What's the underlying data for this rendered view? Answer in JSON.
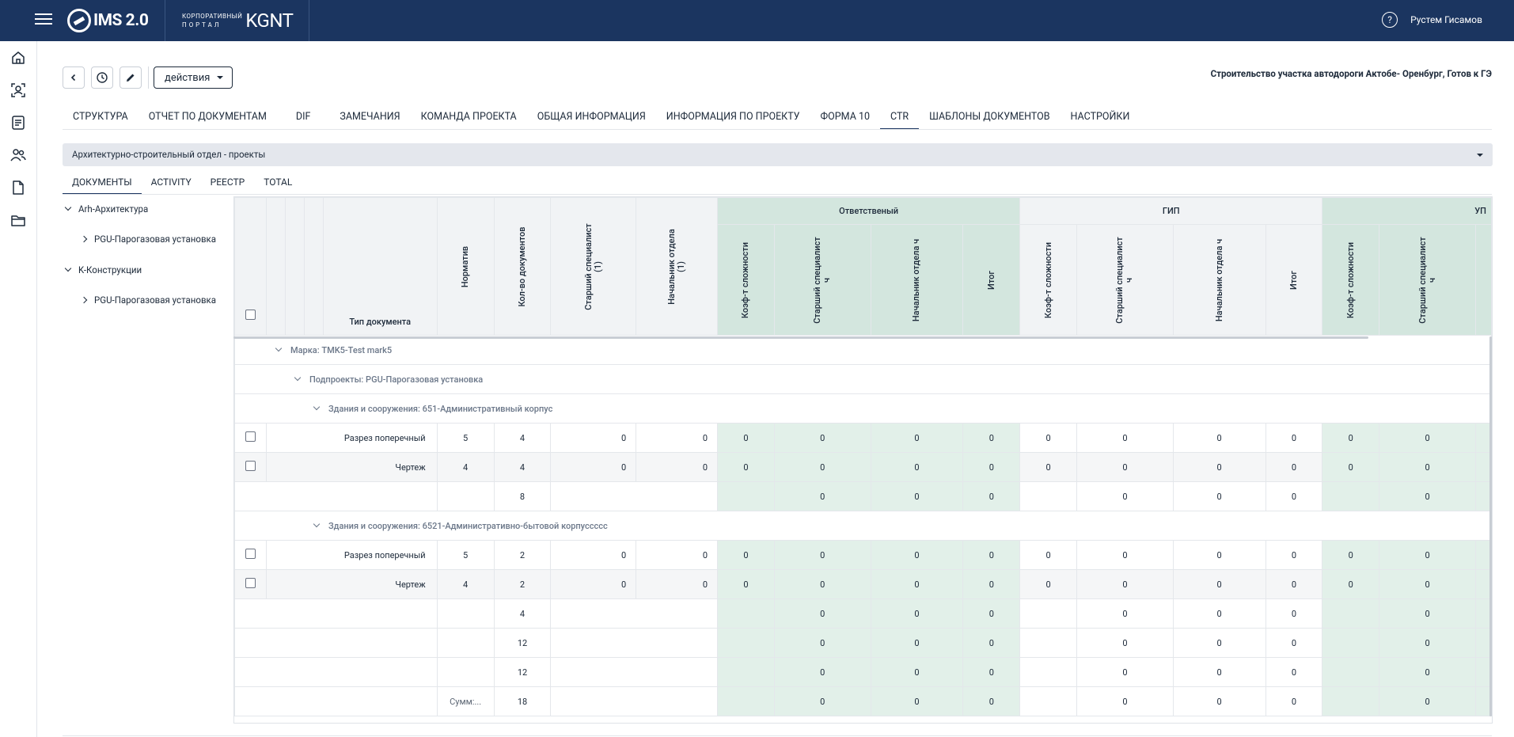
{
  "app": {
    "logo_text": "IMS 2.0",
    "portal_small_1": "КОРПОРАТИВНЫЙ",
    "portal_small_2": "П О Р Т А Л",
    "portal_big": "KGNT",
    "user_name": "Рустем Гисамов",
    "help_symbol": "?"
  },
  "sidebar": {
    "items": [
      {
        "icon": "home-icon"
      },
      {
        "icon": "face-recognition-icon"
      },
      {
        "icon": "document-list-icon"
      },
      {
        "icon": "users-icon"
      },
      {
        "icon": "file-icon"
      },
      {
        "icon": "folder-icon"
      }
    ]
  },
  "toolbar": {
    "actions_label": "действия",
    "project_title": "Строительство участка автодороги Актобе- Оренбург, Готов к ГЭ"
  },
  "tabs": [
    "СТРУКТУРА",
    "ОТЧЕТ ПО ДОКУМЕНТАМ",
    "DIF",
    "ЗАМЕЧАНИЯ",
    "КОМАНДА ПРОЕКТА",
    "ОБЩАЯ ИНФОРМАЦИЯ",
    "ИНФОРМАЦИЯ ПО ПРОЕКТУ",
    "ФОРМА 10",
    "CTR",
    "ШАБЛОНЫ ДОКУМЕНТОВ",
    "НАСТРОЙКИ"
  ],
  "active_tab": "CTR",
  "department": "Архитектурно-строительный отдел - проекты",
  "subtabs": [
    "ДОКУМЕНТЫ",
    "ACTIVITY",
    "РЕЕСТР",
    "TOTAL"
  ],
  "active_subtab": "ДОКУМЕНТЫ",
  "tree": [
    {
      "label": "Arh-Архитектура",
      "level": 0,
      "expanded": true
    },
    {
      "label": "PGU-Парогазовая установка",
      "level": 1,
      "expanded": false
    },
    {
      "label": "K-Конструкции",
      "level": 0,
      "expanded": true
    },
    {
      "label": "PGU-Парогазовая установка",
      "level": 1,
      "expanded": false
    }
  ],
  "grid": {
    "group_headers": {
      "otv": "Ответственый",
      "gip": "ГИП",
      "up": "УП"
    },
    "columns": {
      "type": "Тип документа",
      "norm": "Норматив",
      "count": "Кол-во документов",
      "senior": "Старший специалист (1)",
      "head": "Начальник отдела (1)",
      "koef": "Коэф-т сложности",
      "senior_h": "Старший специалист ч",
      "head_h": "Начальник отдела ч",
      "total": "Итог"
    },
    "groups": {
      "marka": "Марка: TMK5-Test mark5",
      "subproject": "Подпроекты: PGU-Парогазовая установка",
      "building1": "Здания и сооружения: 651-Административный корпус",
      "building2": "Здания и сооружения: 6521-Административно-бытовой корпусcccc"
    },
    "rows_b1": [
      {
        "type": "Разрез поперечный",
        "norm": "5",
        "count": "4",
        "senior": "0",
        "head": "0",
        "v": [
          "0",
          "0",
          "0",
          "0",
          "0",
          "0",
          "0",
          "0",
          "0",
          "0"
        ]
      },
      {
        "type": "Чертеж",
        "norm": "4",
        "count": "4",
        "senior": "0",
        "head": "0",
        "v": [
          "0",
          "0",
          "0",
          "0",
          "0",
          "0",
          "0",
          "0",
          "0",
          "0"
        ]
      }
    ],
    "sub_b1": {
      "count": "8",
      "v": [
        "0",
        "0",
        "0",
        "0",
        "0",
        "0",
        "0"
      ]
    },
    "rows_b2": [
      {
        "type": "Разрез поперечный",
        "norm": "5",
        "count": "2",
        "senior": "0",
        "head": "0",
        "v": [
          "0",
          "0",
          "0",
          "0",
          "0",
          "0",
          "0",
          "0",
          "0",
          "0"
        ]
      },
      {
        "type": "Чертеж",
        "norm": "4",
        "count": "2",
        "senior": "0",
        "head": "0",
        "v": [
          "0",
          "0",
          "0",
          "0",
          "0",
          "0",
          "0",
          "0",
          "0",
          "0"
        ]
      }
    ],
    "sub_b2": {
      "count": "4",
      "v": [
        "0",
        "0",
        "0",
        "0",
        "0",
        "0",
        "0"
      ]
    },
    "sub_sp": {
      "count": "12",
      "v": [
        "0",
        "0",
        "0",
        "0",
        "0",
        "0",
        "0"
      ]
    },
    "sub_mk": {
      "count": "12",
      "v": [
        "0",
        "0",
        "0",
        "0",
        "0",
        "0",
        "0"
      ]
    },
    "summary": {
      "label": "Сумм:...",
      "count": "18",
      "v": [
        "0",
        "0",
        "0",
        "0",
        "0",
        "0",
        "0"
      ]
    }
  }
}
